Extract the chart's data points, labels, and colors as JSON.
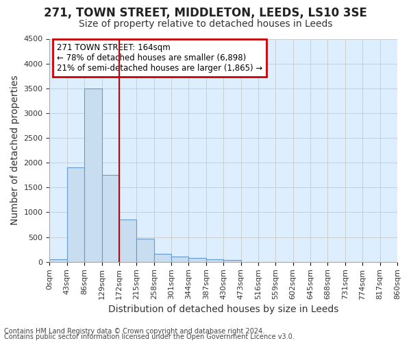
{
  "title": "271, TOWN STREET, MIDDLETON, LEEDS, LS10 3SE",
  "subtitle": "Size of property relative to detached houses in Leeds",
  "xlabel": "Distribution of detached houses by size in Leeds",
  "ylabel": "Number of detached properties",
  "footer_line1": "Contains HM Land Registry data © Crown copyright and database right 2024.",
  "footer_line2": "Contains public sector information licensed under the Open Government Licence v3.0.",
  "annotation_line1": "271 TOWN STREET: 164sqm",
  "annotation_line2": "← 78% of detached houses are smaller (6,898)",
  "annotation_line3": "21% of semi-detached houses are larger (1,865) →",
  "bar_edges": [
    0,
    43,
    86,
    129,
    172,
    215,
    258,
    301,
    344,
    387,
    430,
    473,
    516,
    559,
    602,
    645,
    688,
    731,
    774,
    817,
    860
  ],
  "bar_heights": [
    50,
    1900,
    3500,
    1750,
    850,
    460,
    165,
    100,
    75,
    55,
    40,
    0,
    0,
    0,
    0,
    0,
    0,
    0,
    0,
    0
  ],
  "bar_color": "#c8ddf0",
  "bar_edge_color": "#6699cc",
  "bar_linewidth": 0.8,
  "vline_x": 172,
  "vline_color": "#cc0000",
  "ylim": [
    0,
    4500
  ],
  "yticks": [
    0,
    500,
    1000,
    1500,
    2000,
    2500,
    3000,
    3500,
    4000,
    4500
  ],
  "annotation_box_edgecolor": "#cc0000",
  "grid_color": "#cccccc",
  "fig_bg_color": "#ffffff",
  "plot_bg_color": "#ddeeff",
  "tick_label_fontsize": 8,
  "axis_label_fontsize": 10,
  "title_fontsize": 12,
  "subtitle_fontsize": 10,
  "footer_fontsize": 7
}
